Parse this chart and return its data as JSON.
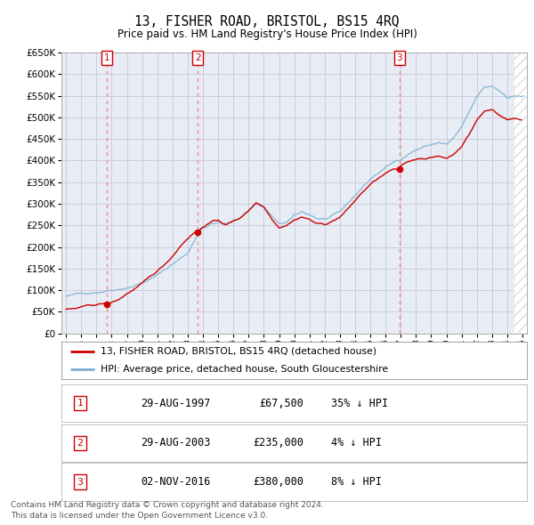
{
  "title": "13, FISHER ROAD, BRISTOL, BS15 4RQ",
  "subtitle": "Price paid vs. HM Land Registry's House Price Index (HPI)",
  "sale_annotations": [
    {
      "num": "1",
      "date_str": "29-AUG-1997",
      "price_str": "£67,500",
      "pct_str": "35% ↓ HPI"
    },
    {
      "num": "2",
      "date_str": "29-AUG-2003",
      "price_str": "£235,000",
      "pct_str": "4% ↓ HPI"
    },
    {
      "num": "3",
      "date_str": "02-NOV-2016",
      "price_str": "£380,000",
      "pct_str": "8% ↓ HPI"
    }
  ],
  "legend_line1": "13, FISHER ROAD, BRISTOL, BS15 4RQ (detached house)",
  "legend_line2": "HPI: Average price, detached house, South Gloucestershire",
  "footer1": "Contains HM Land Registry data © Crown copyright and database right 2024.",
  "footer2": "This data is licensed under the Open Government Licence v3.0.",
  "ylim": [
    0,
    650000
  ],
  "yticks": [
    0,
    50000,
    100000,
    150000,
    200000,
    250000,
    300000,
    350000,
    400000,
    450000,
    500000,
    550000,
    600000,
    650000
  ],
  "xmin": 1995.0,
  "xmax": 2025.0,
  "red_line_color": "#cc0000",
  "blue_line_color": "#7ab0d4",
  "grid_color": "#c8c8d8",
  "plot_bg_color": "#e8ecf4",
  "vline_color": "#ff8888",
  "sale_dot_color": "#cc0000",
  "hatch_color": "#c0c0cc"
}
